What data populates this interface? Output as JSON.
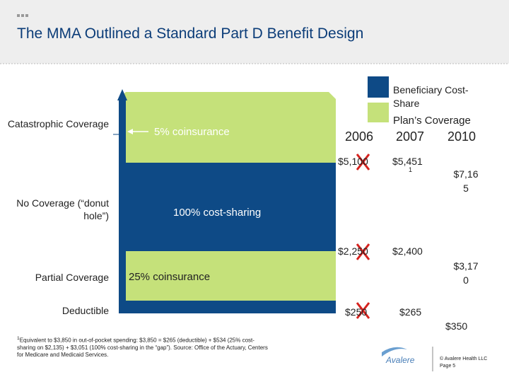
{
  "header": {
    "title": "The MMA Outlined a Standard Part D Benefit Design"
  },
  "legend": [
    "Beneficiary Cost-Share",
    "Plan’s Coverage"
  ],
  "tiers": [
    {
      "label": "Catastrophic Coverage",
      "description": "5% coinsurance"
    },
    {
      "label": "No Coverage (“donut hole”)",
      "description": "100% cost-sharing"
    },
    {
      "label": "Partial Coverage",
      "description": "25% coinsurance"
    },
    {
      "label": "Deductible"
    }
  ],
  "columns": [
    {
      "year": "2006",
      "values": [
        "$5,100",
        "$2,250",
        "$250"
      ]
    },
    {
      "year": "2007",
      "values": [
        "$5,451",
        "$2,400",
        "$265"
      ],
      "marker": "1"
    },
    {
      "year": "2010",
      "values": [
        "$7,165",
        "$3,170",
        "$350"
      ]
    }
  ],
  "footnote": {
    "marker": "1",
    "text": "Equivalent to $3,850 in out-of-pocket spending: $3,850 = $265 (deductible) + $534 (25% cost-sharing on $2,135) + $3,051 (100% cost-sharing in the “gap”).",
    "source": "Source: Office of the Actuary, Centers for Medicare and Medicaid Services."
  },
  "footer": {
    "logo": "Avalere",
    "copyright": "© Avalere Health LLC",
    "page": "Page 5"
  }
}
